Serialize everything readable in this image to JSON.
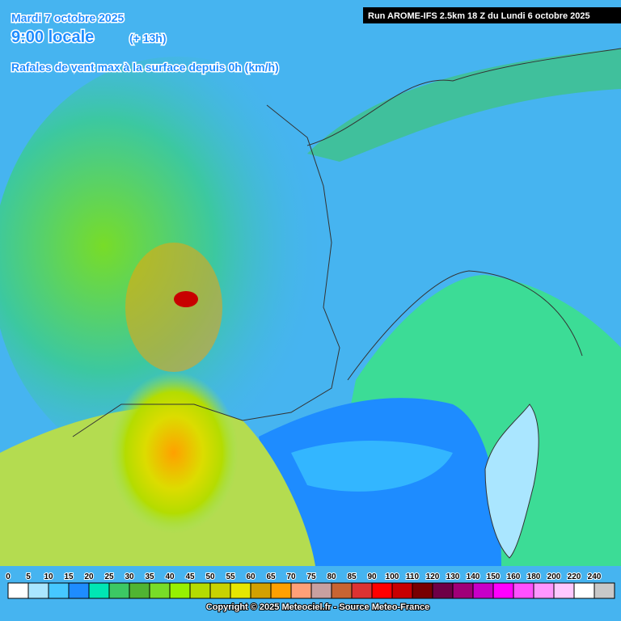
{
  "header": {
    "date": "Mardi 7 octobre 2025",
    "time": "9:00 locale",
    "lead": "(+ 13h)",
    "subtitle": "Rafales de vent max à la surface depuis 0h (km/h)",
    "run": "Run AROME-IFS 2.5km 18 Z du Lundi 6 octobre 2025"
  },
  "legend": {
    "ticks": [
      0,
      5,
      10,
      15,
      20,
      25,
      30,
      35,
      40,
      45,
      50,
      55,
      60,
      65,
      70,
      75,
      80,
      85,
      90,
      100,
      110,
      120,
      130,
      140,
      150,
      160,
      180,
      200,
      220,
      240
    ],
    "colors": [
      "#ffffff",
      "#aae6ff",
      "#46c8ff",
      "#1e8cff",
      "#00e6b4",
      "#3cc864",
      "#50b432",
      "#78dc28",
      "#96f000",
      "#b4dc00",
      "#c8d200",
      "#e6e600",
      "#d2a000",
      "#ffa000",
      "#ffa078",
      "#c8a0a0",
      "#c86432",
      "#dc3232",
      "#ff0000",
      "#c80000",
      "#780000",
      "#6e0046",
      "#a00078",
      "#c800c8",
      "#ff00ff",
      "#ff50ff",
      "#ff96ff",
      "#ffc8ff",
      "#ffffff",
      "#c8c8c8"
    ]
  },
  "footer": {
    "copyright": "Copyright © 2025 Meteociel.fr - Source Meteo-France"
  }
}
